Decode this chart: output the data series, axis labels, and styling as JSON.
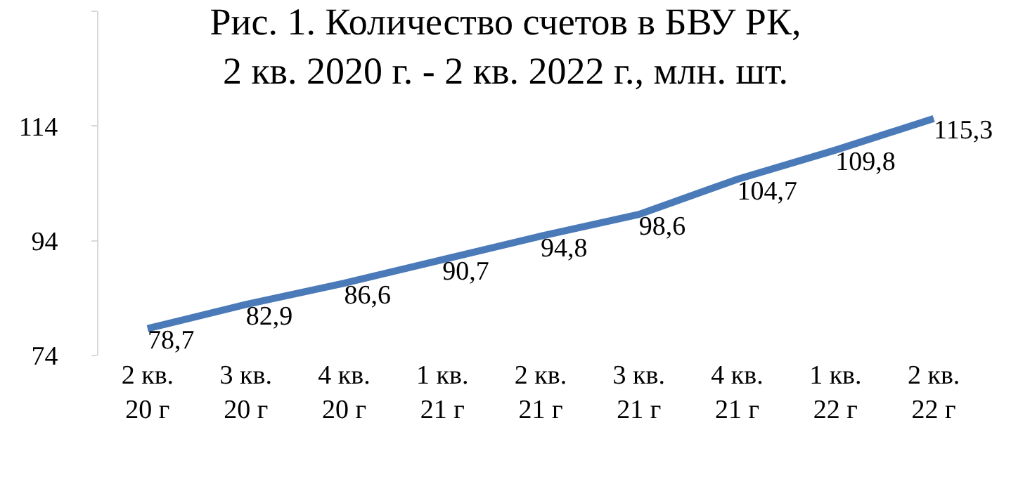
{
  "chart_data": {
    "type": "line",
    "title": "Рис. 1. Количество счетов в БВУ РК,\n2 кв. 2020 г. - 2 кв. 2022 г., млн. шт.",
    "categories": [
      "2 кв.\n20 г",
      "3 кв.\n20 г",
      "4 кв.\n20 г",
      "1 кв.\n21 г",
      "2 кв.\n21 г",
      "3 кв.\n21 г",
      "4 кв.\n21 г",
      "1 кв.\n22 г",
      "2 кв.\n22 г"
    ],
    "series": [
      {
        "color": "#4a7ab8",
        "values": [
          78.7,
          82.9,
          86.6,
          90.7,
          94.8,
          98.6,
          104.7,
          109.8,
          115.3
        ],
        "value_labels": [
          "78,7",
          "82,9",
          "86,6",
          "90,7",
          "94,8",
          "98,6",
          "104,7",
          "109,8",
          "115,3"
        ]
      }
    ],
    "ylim": [
      74,
      134
    ],
    "yticks": [
      74,
      94,
      114,
      {
        "value": 134,
        "label": null
      }
    ],
    "legend": false,
    "marker": "none",
    "line_style": "solid"
  }
}
